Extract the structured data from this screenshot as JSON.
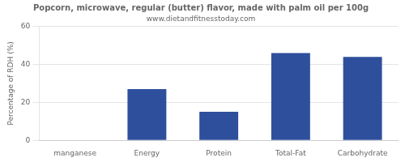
{
  "chart_data": {
    "type": "bar",
    "title": "Popcorn, microwave, regular (butter) flavor, made with palm oil per 100g",
    "subtitle": "www.dietandfitnesstoday.com",
    "categories": [
      "manganese",
      "Energy",
      "Protein",
      "Total-Fat",
      "Carbohydrate"
    ],
    "values": [
      0,
      27,
      15,
      46,
      44
    ],
    "color": "#2e4f9c",
    "ylabel": "Percentage of RDH (%)",
    "ylim": [
      0,
      60
    ],
    "yticks": [
      0,
      20,
      40,
      60
    ],
    "grid": true
  }
}
